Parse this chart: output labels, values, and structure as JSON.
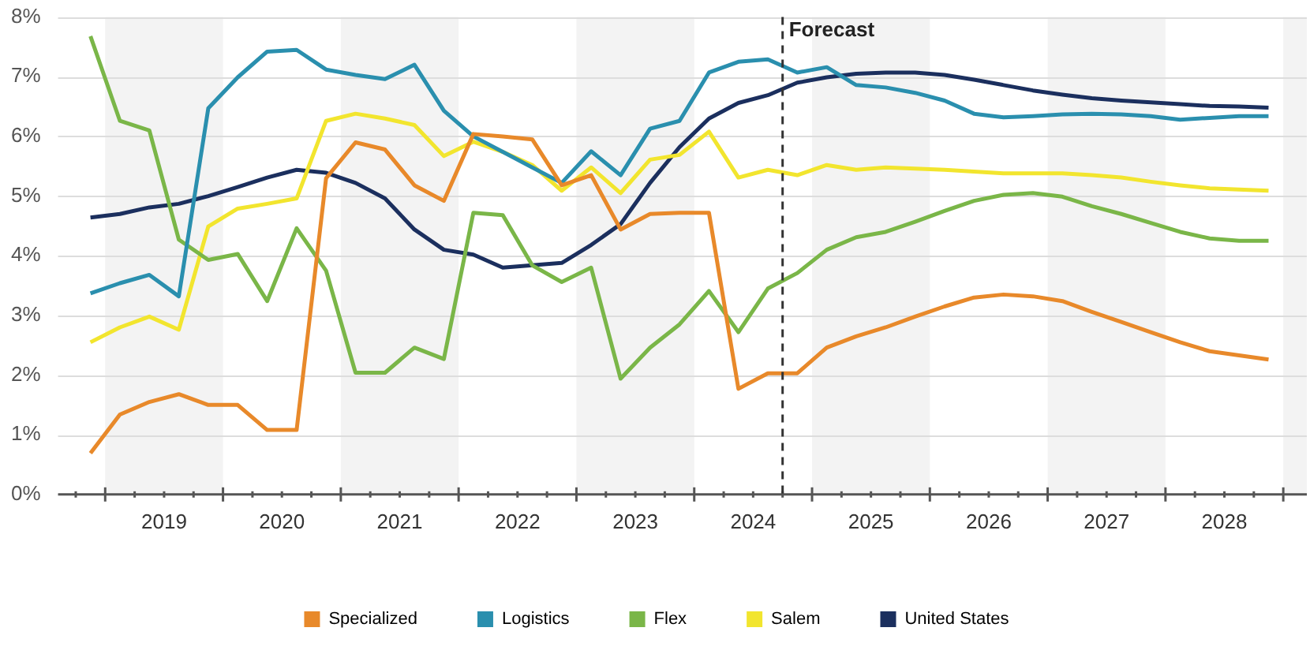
{
  "chart_data": {
    "type": "line",
    "x": [
      2018.875,
      2019.125,
      2019.375,
      2019.625,
      2019.875,
      2020.125,
      2020.375,
      2020.625,
      2020.875,
      2021.125,
      2021.375,
      2021.625,
      2021.875,
      2022.125,
      2022.375,
      2022.625,
      2022.875,
      2023.125,
      2023.375,
      2023.625,
      2023.875,
      2024.125,
      2024.375,
      2024.625,
      2024.875,
      2025.125,
      2025.375,
      2025.625,
      2025.875,
      2026.125,
      2026.375,
      2026.625,
      2026.875,
      2027.125,
      2027.375,
      2027.625,
      2027.875,
      2028.125,
      2028.375,
      2028.625,
      2028.875
    ],
    "series": [
      {
        "name": "Specialized",
        "color": "#e8892a",
        "values": [
          0.69,
          1.34,
          1.55,
          1.68,
          1.5,
          1.5,
          1.08,
          1.08,
          5.3,
          5.9,
          5.78,
          5.18,
          4.92,
          6.04,
          6.0,
          5.95,
          5.18,
          5.35,
          4.44,
          4.7,
          4.72,
          4.72,
          1.77,
          2.03,
          2.03,
          2.46,
          2.65,
          2.8,
          2.98,
          3.15,
          3.3,
          3.35,
          3.32,
          3.24,
          3.06,
          2.89,
          2.72,
          2.55,
          2.4,
          2.33,
          2.26
        ]
      },
      {
        "name": "Logistics",
        "color": "#2a8fae",
        "values": [
          3.37,
          3.54,
          3.68,
          3.32,
          6.47,
          6.99,
          7.42,
          7.45,
          7.12,
          7.03,
          6.96,
          7.2,
          6.43,
          6.0,
          5.74,
          5.48,
          5.22,
          5.75,
          5.35,
          6.13,
          6.26,
          7.07,
          7.25,
          7.29,
          7.07,
          7.16,
          6.86,
          6.82,
          6.73,
          6.6,
          6.38,
          6.32,
          6.34,
          6.37,
          6.38,
          6.37,
          6.34,
          6.28,
          6.31,
          6.34,
          6.34
        ]
      },
      {
        "name": "Flex",
        "color": "#7ab648",
        "values": [
          7.68,
          6.26,
          6.1,
          4.27,
          3.93,
          4.03,
          3.24,
          4.46,
          3.75,
          2.04,
          2.04,
          2.46,
          2.27,
          4.72,
          4.68,
          3.84,
          3.56,
          3.8,
          1.94,
          2.46,
          2.85,
          3.41,
          2.72,
          3.45,
          3.71,
          4.1,
          4.31,
          4.4,
          4.57,
          4.75,
          4.92,
          5.02,
          5.05,
          4.99,
          4.83,
          4.7,
          4.55,
          4.4,
          4.29,
          4.25,
          4.25
        ]
      },
      {
        "name": "Salem",
        "color": "#f2e52e",
        "values": [
          2.55,
          2.8,
          2.98,
          2.76,
          4.49,
          4.79,
          4.87,
          4.96,
          6.26,
          6.38,
          6.3,
          6.19,
          5.67,
          5.91,
          5.74,
          5.52,
          5.09,
          5.48,
          5.05,
          5.61,
          5.69,
          6.08,
          5.31,
          5.44,
          5.35,
          5.52,
          5.44,
          5.48,
          5.46,
          5.44,
          5.41,
          5.38,
          5.38,
          5.38,
          5.35,
          5.31,
          5.24,
          5.18,
          5.13,
          5.11,
          5.09
        ]
      },
      {
        "name": "United States",
        "color": "#1b2f5e",
        "values": [
          4.64,
          4.7,
          4.81,
          4.87,
          5.0,
          5.15,
          5.31,
          5.44,
          5.39,
          5.22,
          4.96,
          4.44,
          4.1,
          4.02,
          3.8,
          3.84,
          3.88,
          4.18,
          4.53,
          5.22,
          5.82,
          6.3,
          6.56,
          6.69,
          6.9,
          6.99,
          7.05,
          7.07,
          7.07,
          7.03,
          6.95,
          6.86,
          6.77,
          6.7,
          6.64,
          6.6,
          6.57,
          6.54,
          6.51,
          6.5,
          6.48
        ]
      }
    ],
    "xlim": [
      2018.6,
      2029.2
    ],
    "xticks": [
      {
        "value": 2018.75,
        "label": null
      },
      {
        "value": 2019,
        "label": null
      },
      {
        "value": 2019.25,
        "label": null
      },
      {
        "value": 2019.5,
        "label": "2019"
      },
      {
        "value": 2019.75,
        "label": null
      },
      {
        "value": 2020,
        "label": null
      },
      {
        "value": 2020.25,
        "label": null
      },
      {
        "value": 2020.5,
        "label": "2020"
      },
      {
        "value": 2020.75,
        "label": null
      },
      {
        "value": 2021,
        "label": null
      },
      {
        "value": 2021.25,
        "label": null
      },
      {
        "value": 2021.5,
        "label": "2021"
      },
      {
        "value": 2021.75,
        "label": null
      },
      {
        "value": 2022,
        "label": null
      },
      {
        "value": 2022.25,
        "label": null
      },
      {
        "value": 2022.5,
        "label": "2022"
      },
      {
        "value": 2022.75,
        "label": null
      },
      {
        "value": 2023,
        "label": null
      },
      {
        "value": 2023.25,
        "label": null
      },
      {
        "value": 2023.5,
        "label": "2023"
      },
      {
        "value": 2023.75,
        "label": null
      },
      {
        "value": 2024,
        "label": null
      },
      {
        "value": 2024.25,
        "label": null
      },
      {
        "value": 2024.5,
        "label": "2024"
      },
      {
        "value": 2024.75,
        "label": null
      },
      {
        "value": 2025,
        "label": null
      },
      {
        "value": 2025.25,
        "label": null
      },
      {
        "value": 2025.5,
        "label": "2025"
      },
      {
        "value": 2025.75,
        "label": null
      },
      {
        "value": 2026,
        "label": null
      },
      {
        "value": 2026.25,
        "label": null
      },
      {
        "value": 2026.5,
        "label": "2026"
      },
      {
        "value": 2026.75,
        "label": null
      },
      {
        "value": 2027,
        "label": null
      },
      {
        "value": 2027.25,
        "label": null
      },
      {
        "value": 2027.5,
        "label": "2027"
      },
      {
        "value": 2027.75,
        "label": null
      },
      {
        "value": 2028,
        "label": null
      },
      {
        "value": 2028.25,
        "label": null
      },
      {
        "value": 2028.5,
        "label": "2028"
      },
      {
        "value": 2028.75,
        "label": null
      },
      {
        "value": 2029,
        "label": null
      }
    ],
    "ylim": [
      0,
      8
    ],
    "yticks": [
      {
        "value": 0,
        "label": "0%"
      },
      {
        "value": 1,
        "label": "1%"
      },
      {
        "value": 2,
        "label": "2%"
      },
      {
        "value": 3,
        "label": "3%"
      },
      {
        "value": 4,
        "label": "4%"
      },
      {
        "value": 5,
        "label": "5%"
      },
      {
        "value": 6,
        "label": "6%"
      },
      {
        "value": 7,
        "label": "7%"
      },
      {
        "value": 8,
        "label": "8%"
      }
    ],
    "bands": [
      {
        "axis": "x",
        "from": 2019,
        "to": 2020,
        "color": "#f3f3f3"
      },
      {
        "axis": "x",
        "from": 2021,
        "to": 2022,
        "color": "#f3f3f3"
      },
      {
        "axis": "x",
        "from": 2023,
        "to": 2024,
        "color": "#f3f3f3"
      },
      {
        "axis": "x",
        "from": 2025,
        "to": 2026,
        "color": "#f3f3f3"
      },
      {
        "axis": "x",
        "from": 2027,
        "to": 2028,
        "color": "#f3f3f3"
      },
      {
        "axis": "x",
        "from": 2029,
        "to": 2029.2,
        "color": "#f3f3f3"
      }
    ],
    "ref_lines": [
      {
        "axis": "x",
        "value": 2024.75,
        "label": "Forecast",
        "color": "#333333",
        "line_style": "dashed"
      }
    ],
    "grid": "y",
    "legend": "bottom",
    "marker": "none",
    "line_style": "solid"
  }
}
